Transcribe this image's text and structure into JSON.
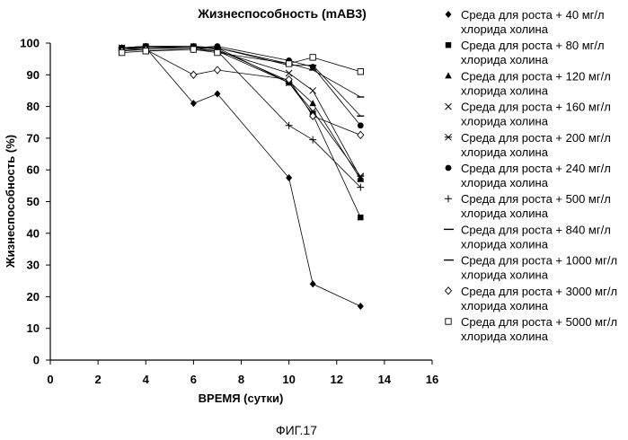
{
  "caption": "ФИГ.17",
  "chart_data": {
    "type": "line",
    "title": "Жизнеспособность (mAB3)",
    "xlabel": "ВРЕМЯ (сутки)",
    "ylabel": "Жизнеспособность (%)",
    "xlim": [
      0,
      16
    ],
    "ylim": [
      0,
      100
    ],
    "xticks": [
      0,
      2,
      4,
      6,
      8,
      10,
      12,
      14,
      16
    ],
    "yticks": [
      0,
      10,
      20,
      30,
      40,
      50,
      60,
      70,
      80,
      90,
      100
    ],
    "grid": false,
    "legend_position": "right",
    "series": [
      {
        "name": "Среда для роста + 40 мг/л хлорида холина",
        "marker": "diamond",
        "x": [
          3,
          4,
          6,
          7,
          10,
          11,
          13
        ],
        "y": [
          98.5,
          98.5,
          81,
          84,
          57.5,
          24,
          17
        ]
      },
      {
        "name": "Среда для роста + 80 мг/л хлорида холина",
        "marker": "square",
        "x": [
          3,
          4,
          6,
          7,
          10,
          11,
          13
        ],
        "y": [
          98.5,
          99,
          99,
          98.5,
          87.5,
          77.5,
          45
        ]
      },
      {
        "name": "Среда для роста + 120 мг/л хлорида холина",
        "marker": "triangle",
        "x": [
          3,
          4,
          6,
          7,
          10,
          11,
          13
        ],
        "y": [
          98.5,
          99,
          99,
          98,
          88,
          81,
          57
        ]
      },
      {
        "name": "Среда для роста + 160 мг/л хлорида холина",
        "marker": "x",
        "x": [
          3,
          4,
          6,
          7,
          10,
          11,
          13
        ],
        "y": [
          98.5,
          98.5,
          98.5,
          97.5,
          90.5,
          85,
          57.5
        ]
      },
      {
        "name": "Среда для роста + 200 мг/л хлорида холина",
        "marker": "star",
        "x": [
          3,
          4,
          6,
          7,
          10,
          11,
          13
        ],
        "y": [
          98,
          98.5,
          98.5,
          97.5,
          87.5,
          78.5,
          58
        ]
      },
      {
        "name": "Среда для роста + 240 мг/л хлорида холина",
        "marker": "circle",
        "x": [
          3,
          4,
          6,
          7,
          10,
          11,
          13
        ],
        "y": [
          98.5,
          99,
          98.5,
          99,
          94.5,
          92.5,
          74
        ]
      },
      {
        "name": "Среда для роста + 500 мг/л хлорида холина",
        "marker": "plus",
        "x": [
          3,
          4,
          6,
          7,
          10,
          11,
          13
        ],
        "y": [
          98,
          98,
          98,
          97.5,
          74,
          69.5,
          54.5
        ]
      },
      {
        "name": "Среда для роста + 840 мг/л хлорида холина",
        "marker": "dash",
        "x": [
          3,
          4,
          6,
          7,
          10,
          11,
          13
        ],
        "y": [
          98.5,
          98.5,
          98.5,
          98.5,
          93.5,
          91.5,
          83
        ]
      },
      {
        "name": "Среда для роста + 1000 мг/л хлорида холина",
        "marker": "dash",
        "x": [
          3,
          4,
          6,
          7,
          10,
          11,
          13
        ],
        "y": [
          98.5,
          98.5,
          98.5,
          98.5,
          93,
          93,
          77
        ]
      },
      {
        "name": "Среда для роста + 3000 мг/л хлорида холина",
        "marker": "open-diamond",
        "x": [
          3,
          4,
          6,
          7,
          10,
          11,
          13
        ],
        "y": [
          97.5,
          98,
          90,
          91.5,
          88.5,
          77,
          71
        ]
      },
      {
        "name": "Среда для роста + 5000 мг/л хлорида холина",
        "marker": "open-square",
        "x": [
          3,
          4,
          6,
          7,
          10,
          11,
          13
        ],
        "y": [
          97,
          97.5,
          98,
          97,
          93.5,
          95.5,
          91
        ]
      }
    ]
  }
}
